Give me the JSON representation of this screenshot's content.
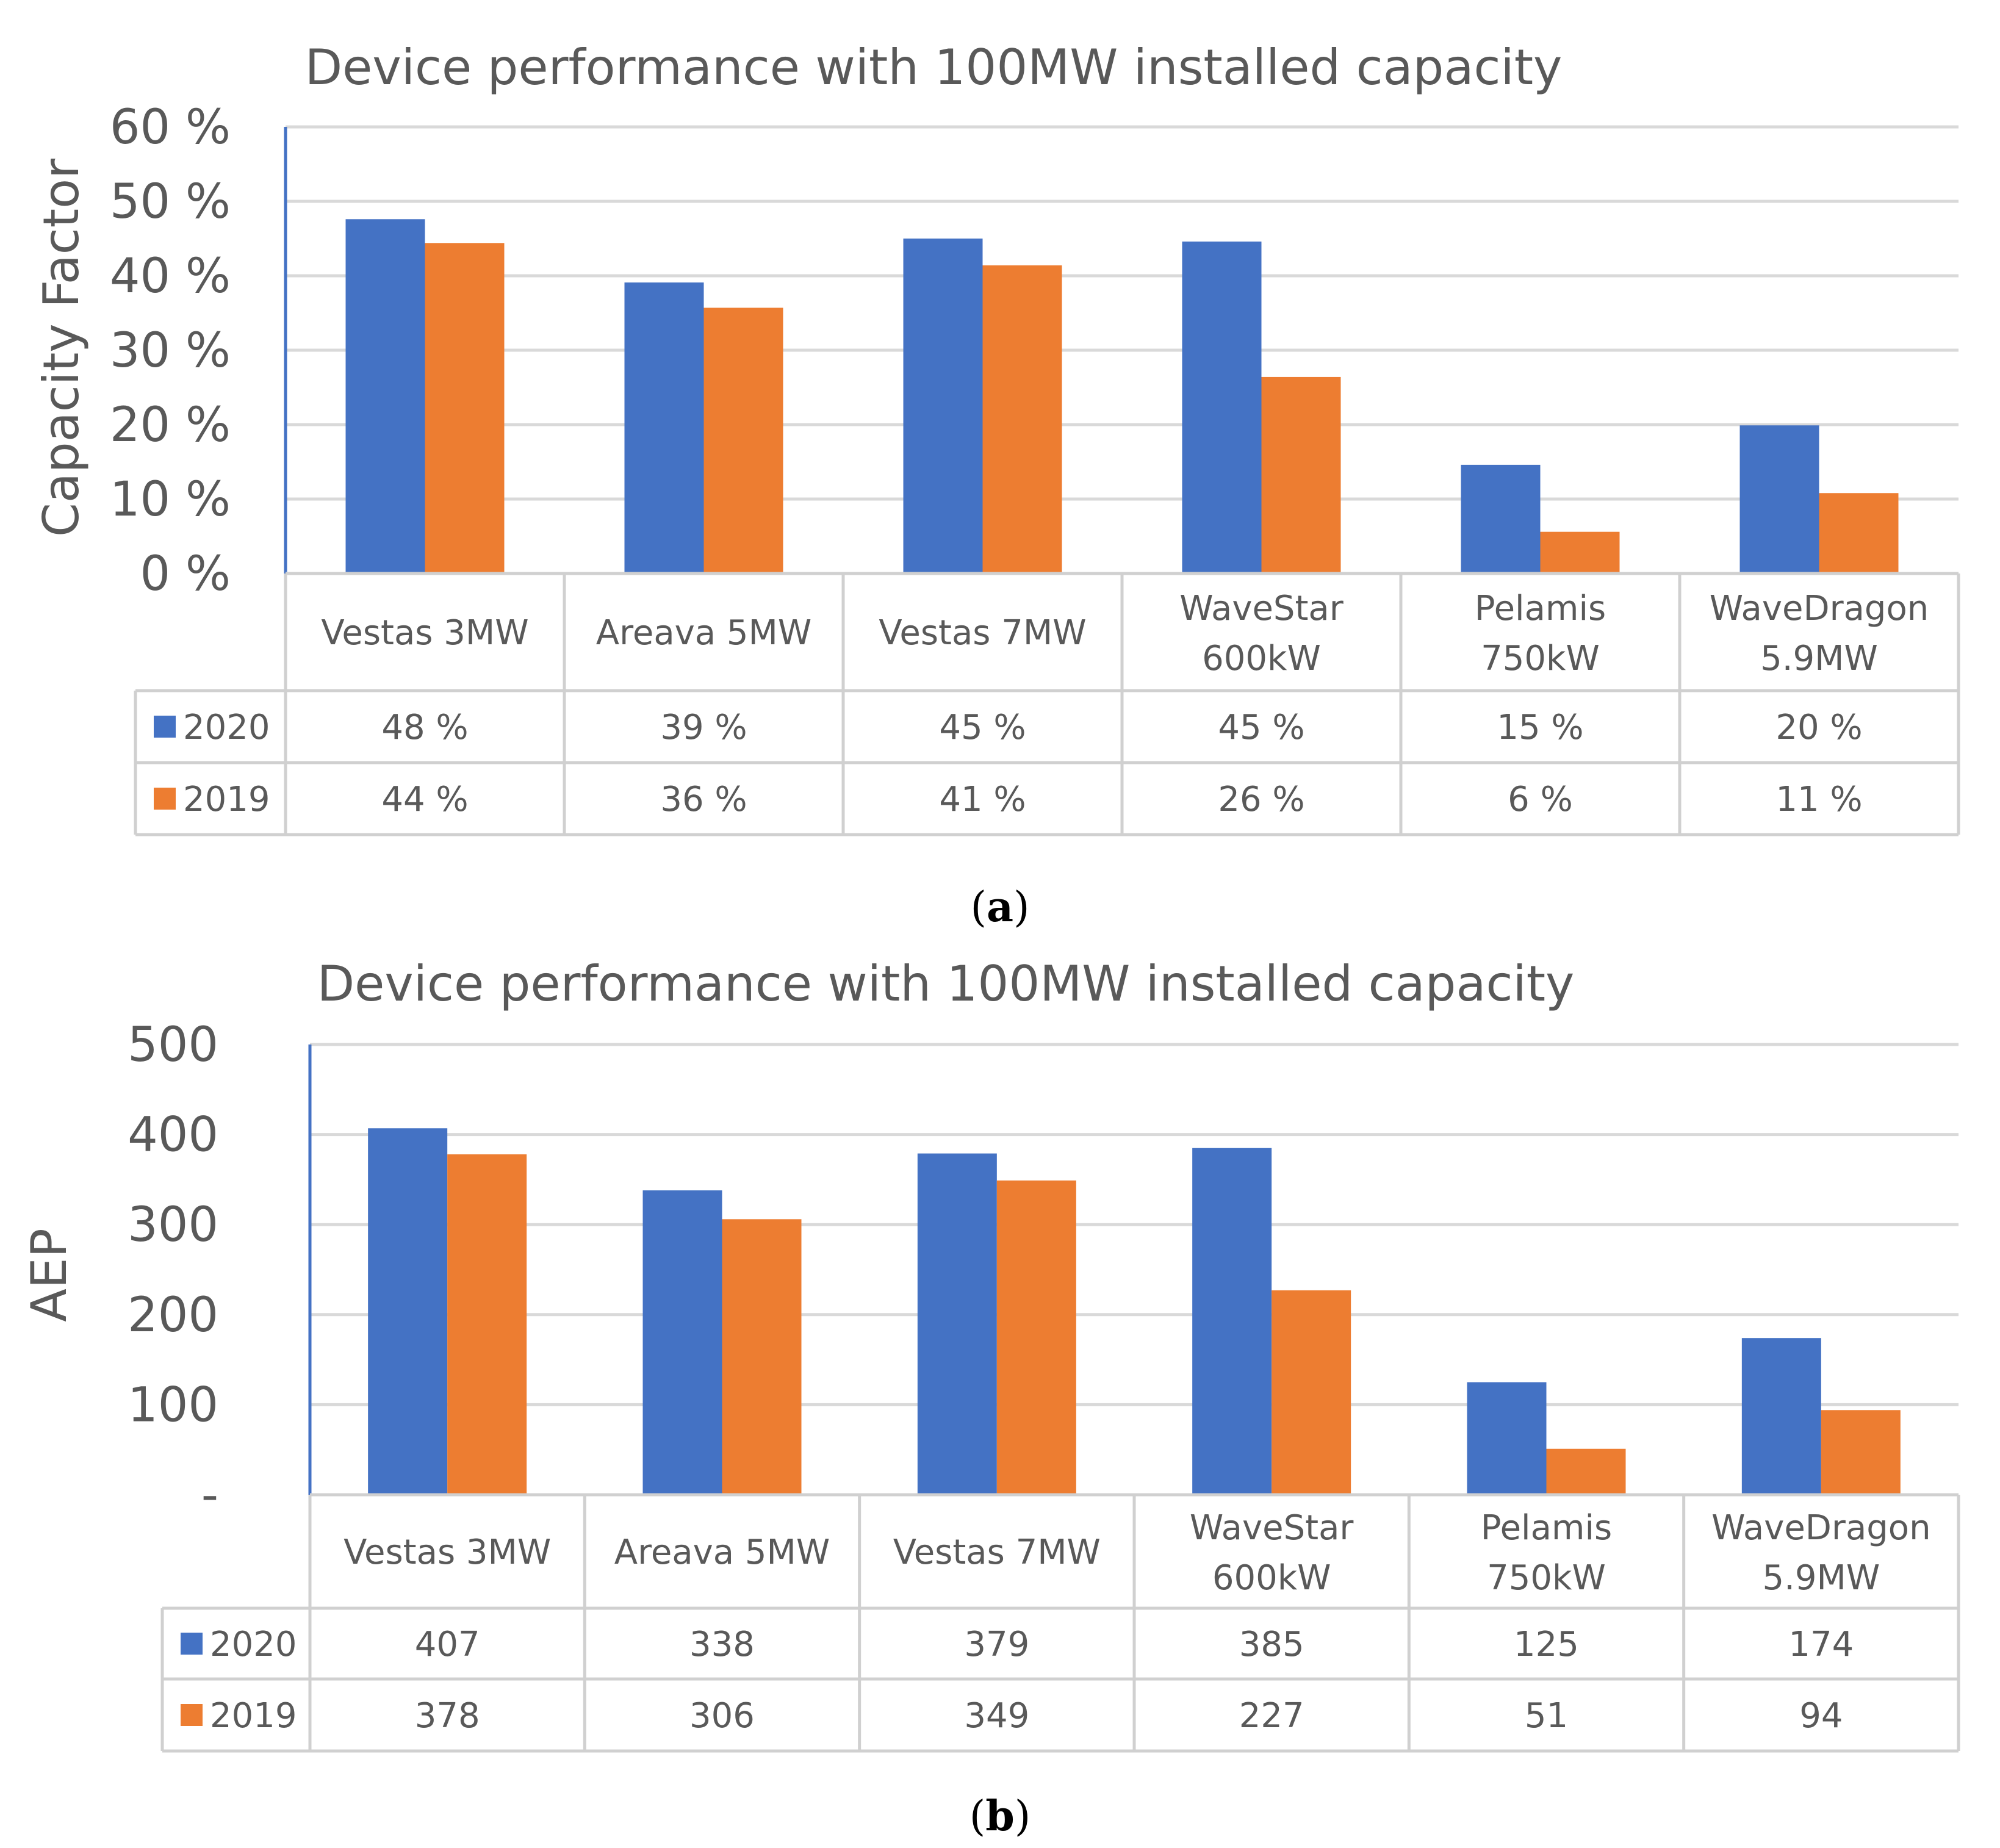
{
  "colors": {
    "s2020": "#4472c4",
    "s2019": "#ed7d31"
  },
  "charts": [
    {
      "title": "Device performance with 100MW installed capacity",
      "caption_letter": "a"
    },
    {
      "title": "Device performance with 100MW installed capacity",
      "caption_letter": "b"
    }
  ],
  "chart_data": [
    {
      "type": "bar",
      "title": "Device performance with 100MW installed capacity",
      "ylabel": "Capacity Factor",
      "xlabel": "",
      "ylim": [
        0,
        60
      ],
      "yticks": [
        0,
        10,
        20,
        30,
        40,
        50,
        60
      ],
      "ytick_labels": [
        "0 %",
        "10 %",
        "20 %",
        "30 %",
        "40 %",
        "50 %",
        "60 %"
      ],
      "categories": [
        [
          "Vestas 3MW"
        ],
        [
          "Areava 5MW"
        ],
        [
          "Vestas 7MW"
        ],
        [
          "WaveStar",
          "600kW"
        ],
        [
          "Pelamis",
          "750kW"
        ],
        [
          "WaveDragon",
          "5.9MW"
        ]
      ],
      "series": [
        {
          "name": "2020",
          "values": [
            47.6,
            39.1,
            45.0,
            44.6,
            14.6,
            19.9
          ],
          "labels": [
            "48 %",
            "39 %",
            "45 %",
            "45 %",
            "15 %",
            "20 %"
          ]
        },
        {
          "name": "2019",
          "values": [
            44.4,
            35.7,
            41.4,
            26.4,
            5.6,
            10.8
          ],
          "labels": [
            "44 %",
            "36 %",
            "41 %",
            "26 %",
            "6 %",
            "11 %"
          ]
        }
      ],
      "legend": "data-table"
    },
    {
      "type": "bar",
      "title": "Device performance with 100MW installed capacity",
      "ylabel": "AEP",
      "xlabel": "",
      "ylim": [
        0,
        500
      ],
      "yticks": [
        0,
        100,
        200,
        300,
        400,
        500
      ],
      "ytick_labels": [
        "-",
        "100",
        "200",
        "300",
        "400",
        "500"
      ],
      "categories": [
        [
          "Vestas 3MW"
        ],
        [
          "Areava 5MW"
        ],
        [
          "Vestas 7MW"
        ],
        [
          "WaveStar",
          "600kW"
        ],
        [
          "Pelamis",
          "750kW"
        ],
        [
          "WaveDragon",
          "5.9MW"
        ]
      ],
      "series": [
        {
          "name": "2020",
          "values": [
            407,
            338,
            379,
            385,
            125,
            174
          ],
          "labels": [
            "407",
            "338",
            "379",
            "385",
            "125",
            "174"
          ]
        },
        {
          "name": "2019",
          "values": [
            378,
            306,
            349,
            227,
            51,
            94
          ],
          "labels": [
            "378",
            "306",
            "349",
            "227",
            "51",
            "94"
          ]
        }
      ],
      "legend": "data-table"
    }
  ]
}
